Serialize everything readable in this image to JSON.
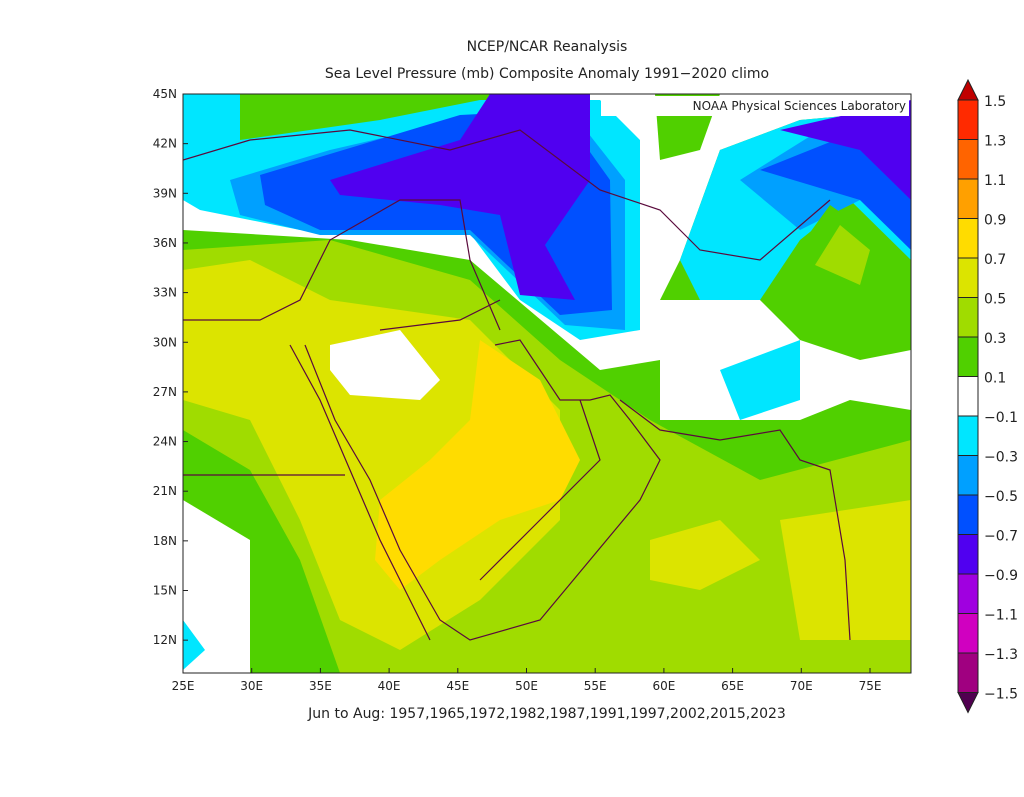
{
  "title": "NCEP/NCAR Reanalysis",
  "subtitle": "Sea Level Pressure (mb) Composite Anomaly 1991−2020 climo",
  "credit": "NOAA Physical Sciences Laboratory",
  "footer": "Jun to Aug: 1957,1965,1972,1982,1987,1991,1997,2002,2015,2023",
  "lat_labels": [
    "45N",
    "42N",
    "39N",
    "36N",
    "33N",
    "30N",
    "27N",
    "24N",
    "21N",
    "18N",
    "15N",
    "12N"
  ],
  "lon_labels": [
    "25E",
    "30E",
    "35E",
    "40E",
    "45E",
    "50E",
    "55E",
    "60E",
    "65E",
    "70E",
    "75E"
  ],
  "colorbar": {
    "labels": [
      "1.5",
      "1.3",
      "1.1",
      "0.9",
      "0.7",
      "0.5",
      "0.3",
      "0.1",
      "−0.1",
      "−0.3",
      "−0.5",
      "−0.7",
      "−0.9",
      "−1.1",
      "−1.3",
      "−1.5"
    ],
    "colors": [
      "#ff2a00",
      "#ff6400",
      "#ffa000",
      "#ffdc00",
      "#dce400",
      "#a0dc00",
      "#50d000",
      "#ffffff",
      "#00e6ff",
      "#00a0ff",
      "#0050ff",
      "#5000f0",
      "#a000e0",
      "#d000c0",
      "#a00080"
    ],
    "over_color": "#c00000",
    "under_color": "#500050"
  }
}
